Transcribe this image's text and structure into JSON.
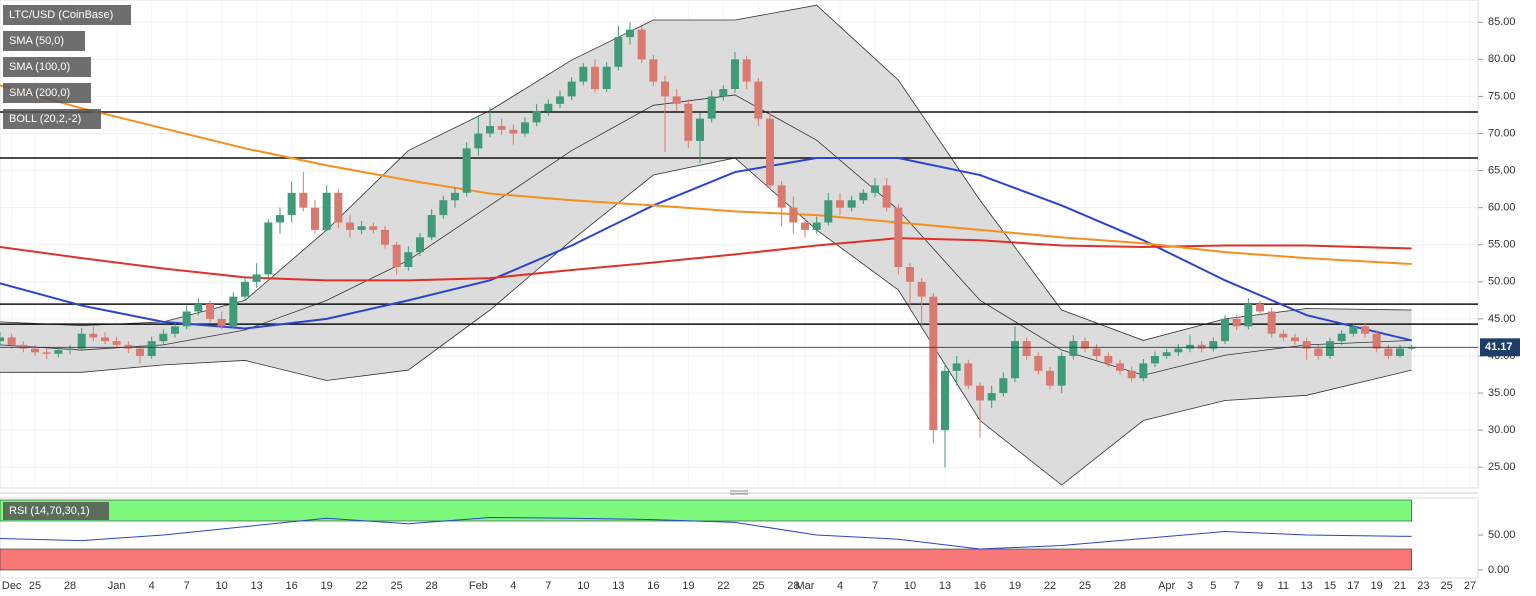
{
  "chart_data": {
    "type": "candlestick",
    "title": "LTC/USD (CoinBase)",
    "up_color": "#3f9a78",
    "down_color": "#d97a70",
    "start_date": "Dec 22",
    "candles": [
      [
        42,
        43.2,
        41.5,
        42.5
      ],
      [
        42.5,
        43,
        41,
        41.5
      ],
      [
        41.5,
        42,
        40.5,
        41
      ],
      [
        41,
        41.5,
        40,
        40.5
      ],
      [
        40.5,
        41,
        39.6,
        40.3
      ],
      [
        40.3,
        41.2,
        39.8,
        40.8
      ],
      [
        40.8,
        41.5,
        40.2,
        41
      ],
      [
        41,
        43.8,
        40.8,
        43
      ],
      [
        43,
        44,
        42,
        42.5
      ],
      [
        42.5,
        43.2,
        41.6,
        42
      ],
      [
        42,
        42.6,
        41,
        41.5
      ],
      [
        41.5,
        42,
        40.4,
        41
      ],
      [
        41,
        41.5,
        39,
        40
      ],
      [
        40,
        42.6,
        39.6,
        42
      ],
      [
        42,
        43.6,
        41.5,
        43
      ],
      [
        43,
        44.5,
        42.5,
        44
      ],
      [
        44,
        46.8,
        43.6,
        46
      ],
      [
        46,
        47.8,
        45.5,
        47
      ],
      [
        47,
        47.5,
        44.5,
        45
      ],
      [
        45,
        46,
        43.6,
        44
      ],
      [
        44,
        48.6,
        43.8,
        48
      ],
      [
        48,
        50.8,
        47.5,
        50
      ],
      [
        50,
        52.5,
        49.2,
        51
      ],
      [
        51,
        58.5,
        50.5,
        58
      ],
      [
        58,
        60,
        56.5,
        59
      ],
      [
        59,
        63.5,
        58,
        62
      ],
      [
        62,
        64.8,
        59.5,
        60
      ],
      [
        60,
        61,
        56.5,
        57
      ],
      [
        57,
        63,
        56.8,
        62
      ],
      [
        62,
        62.5,
        57.2,
        58
      ],
      [
        58,
        59,
        56,
        57
      ],
      [
        57,
        58.2,
        56.4,
        57.5
      ],
      [
        57.5,
        58,
        56.5,
        57
      ],
      [
        57,
        57.5,
        54.5,
        55
      ],
      [
        55,
        55.4,
        51,
        52
      ],
      [
        52,
        54.8,
        51.5,
        54
      ],
      [
        54,
        56.6,
        53.5,
        56
      ],
      [
        56,
        59.8,
        55.6,
        59
      ],
      [
        59,
        61.6,
        58.5,
        61
      ],
      [
        61,
        62.8,
        60,
        62
      ],
      [
        62,
        68.8,
        61.5,
        68
      ],
      [
        68,
        72.5,
        67,
        70
      ],
      [
        70,
        73.5,
        69.5,
        71
      ],
      [
        71,
        72,
        69.8,
        70.5
      ],
      [
        70.5,
        71.2,
        68.5,
        70
      ],
      [
        70,
        72.2,
        69.6,
        71.5
      ],
      [
        71.5,
        74,
        71,
        73
      ],
      [
        73,
        74.6,
        72.4,
        74
      ],
      [
        74,
        75.8,
        73.4,
        75
      ],
      [
        75,
        77.6,
        74.5,
        77
      ],
      [
        77,
        79.5,
        76.5,
        79
      ],
      [
        79,
        80,
        75.5,
        76
      ],
      [
        76,
        79.6,
        75.6,
        79
      ],
      [
        79,
        84.5,
        78.5,
        83
      ],
      [
        83,
        85,
        82,
        84
      ],
      [
        84,
        84.5,
        79.5,
        80
      ],
      [
        80,
        80.6,
        76.4,
        77
      ],
      [
        77,
        77.8,
        67.5,
        75
      ],
      [
        75,
        76,
        73,
        74
      ],
      [
        74,
        74.6,
        68,
        69
      ],
      [
        69,
        72.8,
        66,
        72
      ],
      [
        72,
        75.8,
        71.5,
        75
      ],
      [
        75,
        76.5,
        74.4,
        76
      ],
      [
        76,
        81,
        75.5,
        80
      ],
      [
        80,
        80.5,
        76,
        77
      ],
      [
        77,
        77.5,
        71,
        72
      ],
      [
        72,
        73,
        62.5,
        63
      ],
      [
        63,
        63.6,
        57.5,
        60
      ],
      [
        60,
        61.5,
        56.5,
        58
      ],
      [
        58,
        58.6,
        56,
        57
      ],
      [
        57,
        58.8,
        56.5,
        58
      ],
      [
        58,
        62,
        57.6,
        61
      ],
      [
        61,
        62,
        59,
        60
      ],
      [
        60,
        61.6,
        59.5,
        61
      ],
      [
        61,
        62.5,
        60.5,
        62
      ],
      [
        62,
        64,
        61.4,
        63
      ],
      [
        63,
        64,
        59.5,
        60
      ],
      [
        60,
        60.5,
        51,
        52
      ],
      [
        52,
        52.5,
        46.6,
        50
      ],
      [
        50,
        50.5,
        44,
        48
      ],
      [
        48,
        48.5,
        28.2,
        30
      ],
      [
        30,
        39,
        25,
        38
      ],
      [
        38,
        40,
        36,
        39
      ],
      [
        39,
        39.5,
        35.5,
        36
      ],
      [
        36,
        36.5,
        29,
        34
      ],
      [
        34,
        36,
        33,
        35
      ],
      [
        35,
        37.8,
        34.5,
        37
      ],
      [
        37,
        44,
        36.5,
        42
      ],
      [
        42,
        42.5,
        39.5,
        40
      ],
      [
        40,
        40.5,
        37.5,
        38
      ],
      [
        38,
        38.5,
        35.5,
        36
      ],
      [
        36,
        40.5,
        35,
        40
      ],
      [
        40,
        42.8,
        39.5,
        42
      ],
      [
        42,
        42.5,
        40.5,
        41
      ],
      [
        41,
        41.6,
        39.5,
        40
      ],
      [
        40,
        40.5,
        38.5,
        39
      ],
      [
        39,
        39.5,
        37.5,
        38
      ],
      [
        38,
        38.6,
        36.5,
        37
      ],
      [
        37,
        39.6,
        36.6,
        39
      ],
      [
        39,
        40.6,
        38.5,
        40
      ],
      [
        40,
        41,
        39.6,
        40.5
      ],
      [
        40.5,
        41.6,
        40,
        41
      ],
      [
        41,
        42.8,
        40.5,
        41.5
      ],
      [
        41.5,
        42,
        40.5,
        41
      ],
      [
        41,
        42.5,
        40.6,
        42
      ],
      [
        42,
        45.5,
        41.6,
        45
      ],
      [
        45,
        45.5,
        43.5,
        44
      ],
      [
        44,
        47.8,
        43.6,
        47
      ],
      [
        47,
        47.5,
        45.5,
        46
      ],
      [
        46,
        46.5,
        42.5,
        43
      ],
      [
        43,
        43.5,
        42,
        42.5
      ],
      [
        42.5,
        43,
        41.5,
        42
      ],
      [
        42,
        42.5,
        39.5,
        41
      ],
      [
        41,
        41.5,
        39.5,
        40
      ],
      [
        40,
        42.5,
        39.6,
        42
      ],
      [
        42,
        43.5,
        41.5,
        43
      ],
      [
        43,
        44.5,
        42.6,
        44
      ],
      [
        44,
        44.5,
        42.5,
        43
      ],
      [
        43,
        43.5,
        40.5,
        41
      ],
      [
        41,
        41.5,
        39.6,
        40
      ],
      [
        40,
        41.5,
        39.8,
        41
      ],
      [
        41,
        41.5,
        40.8,
        41.17
      ]
    ],
    "xlim": [
      "Dec 22",
      "Apr 27"
    ],
    "xticks": [
      {
        "value": "Dec 23",
        "label": "Dec"
      },
      {
        "value": "Dec 25",
        "label": "25"
      },
      {
        "value": "Dec 28",
        "label": "28"
      },
      {
        "value": "Jan 1",
        "label": "Jan"
      },
      {
        "value": "Jan 4",
        "label": "4"
      },
      {
        "value": "Jan 7",
        "label": "7"
      },
      {
        "value": "Jan 10",
        "label": "10"
      },
      {
        "value": "Jan 13",
        "label": "13"
      },
      {
        "value": "Jan 16",
        "label": "16"
      },
      {
        "value": "Jan 19",
        "label": "19"
      },
      {
        "value": "Jan 22",
        "label": "22"
      },
      {
        "value": "Jan 25",
        "label": "25"
      },
      {
        "value": "Jan 28",
        "label": "28"
      },
      {
        "value": "Feb 1",
        "label": "Feb"
      },
      {
        "value": "Feb 4",
        "label": "4"
      },
      {
        "value": "Feb 7",
        "label": "7"
      },
      {
        "value": "Feb 10",
        "label": "10"
      },
      {
        "value": "Feb 13",
        "label": "13"
      },
      {
        "value": "Feb 16",
        "label": "16"
      },
      {
        "value": "Feb 19",
        "label": "19"
      },
      {
        "value": "Feb 22",
        "label": "22"
      },
      {
        "value": "Feb 25",
        "label": "25"
      },
      {
        "value": "Feb 28",
        "label": "28"
      },
      {
        "value": "Mar 1",
        "label": "Mar"
      },
      {
        "value": "Mar 4",
        "label": "4"
      },
      {
        "value": "Mar 7",
        "label": "7"
      },
      {
        "value": "Mar 10",
        "label": "10"
      },
      {
        "value": "Mar 13",
        "label": "13"
      },
      {
        "value": "Mar 16",
        "label": "16"
      },
      {
        "value": "Mar 19",
        "label": "19"
      },
      {
        "value": "Mar 22",
        "label": "22"
      },
      {
        "value": "Mar 25",
        "label": "25"
      },
      {
        "value": "Mar 28",
        "label": "28"
      },
      {
        "value": "Apr 1",
        "label": "Apr"
      },
      {
        "value": "Apr 3",
        "label": "3"
      },
      {
        "value": "Apr 5",
        "label": "5"
      },
      {
        "value": "Apr 7",
        "label": "7"
      },
      {
        "value": "Apr 9",
        "label": "9"
      },
      {
        "value": "Apr 11",
        "label": "11"
      },
      {
        "value": "Apr 13",
        "label": "13"
      },
      {
        "value": "Apr 15",
        "label": "15"
      },
      {
        "value": "Apr 17",
        "label": "17"
      },
      {
        "value": "Apr 19",
        "label": "19"
      },
      {
        "value": "Apr 21",
        "label": "21"
      },
      {
        "value": "Apr 23",
        "label": "23"
      },
      {
        "value": "Apr 25",
        "label": "25"
      },
      {
        "value": "Apr 27",
        "label": "27"
      }
    ],
    "ylim": [
      22.2,
      88
    ],
    "yticks": [
      {
        "value": 25,
        "label": "25.00"
      },
      {
        "value": 30,
        "label": "30.00"
      },
      {
        "value": 35,
        "label": "35.00"
      },
      {
        "value": 40,
        "label": "40.00"
      },
      {
        "value": 45,
        "label": "45.00"
      },
      {
        "value": 50,
        "label": "50.00"
      },
      {
        "value": 55,
        "label": "55.00"
      },
      {
        "value": 60,
        "label": "60.00"
      },
      {
        "value": 65,
        "label": "65.00"
      },
      {
        "value": 70,
        "label": "70.00"
      },
      {
        "value": 75,
        "label": "75.00"
      },
      {
        "value": 80,
        "label": "80.00"
      },
      {
        "value": 85,
        "label": "85.00"
      }
    ],
    "grid": true,
    "levels": [
      72.9,
      66.7,
      47,
      44.3
    ],
    "indicator_dates": [
      "Dec 22",
      "Dec 29",
      "Jan 5",
      "Jan 12",
      "Jan 19",
      "Jan 26",
      "Feb 2",
      "Feb 9",
      "Feb 16",
      "Feb 23",
      "Mar 2",
      "Mar 9",
      "Mar 16",
      "Mar 23",
      "Mar 30",
      "Apr 6",
      "Apr 13",
      "Apr 22"
    ],
    "series": [
      {
        "name": "SMA (50,0)",
        "color": "#2a44d0",
        "values": [
          49.8,
          46.8,
          44.6,
          43.7,
          45,
          47.5,
          50.2,
          54.9,
          60.3,
          64.8,
          66.7,
          66.7,
          64.4,
          60.3,
          55.6,
          50.2,
          45.5,
          42.1
        ]
      },
      {
        "name": "SMA (100,0)",
        "color": "#e0302a",
        "values": [
          54.7,
          53.2,
          51.8,
          50.6,
          50.2,
          50.2,
          50.5,
          51.6,
          52.6,
          53.7,
          54.9,
          55.9,
          55.6,
          54.9,
          54.7,
          54.9,
          54.9,
          54.5
        ]
      },
      {
        "name": "SMA (200,0)",
        "color": "#f5901e",
        "values": [
          76.5,
          73.4,
          70.7,
          68,
          65.7,
          63.7,
          61.9,
          61,
          60.3,
          59.5,
          59,
          58,
          57,
          56,
          55.2,
          54,
          53.2,
          52.4
        ]
      }
    ],
    "bollinger": {
      "name": "BOLL (20,2,-2)",
      "color": "#333333",
      "upper": [
        44.6,
        44.1,
        44.6,
        47.5,
        57,
        67.7,
        73.1,
        79.9,
        85.3,
        85.3,
        87.3,
        77.2,
        61,
        46.2,
        42.1,
        45,
        46.4,
        46.2
      ],
      "middle": [
        41.5,
        40.8,
        41.5,
        43.5,
        47.5,
        52.9,
        60.3,
        67.7,
        73.8,
        75.2,
        69.1,
        59.7,
        47.5,
        40.8,
        37.4,
        40.1,
        41.5,
        42.1
      ],
      "lower": [
        37.8,
        37.8,
        38.8,
        39.4,
        36.7,
        38.1,
        46.2,
        55.6,
        64.4,
        66.7,
        57,
        48.9,
        31.3,
        22.6,
        31.3,
        34,
        34.7,
        38.1
      ]
    },
    "rsi": {
      "name": "RSI (14,70,30,1)",
      "color": "#2a44d0",
      "values": [
        45,
        42,
        50,
        62,
        74,
        66,
        75,
        74,
        72,
        68,
        50,
        44,
        30,
        35,
        45,
        55,
        50,
        48
      ],
      "ylim": [
        0,
        100
      ],
      "yticks": [
        {
          "value": 50,
          "label": "50.00"
        },
        {
          "value": 0,
          "label": "0.00"
        }
      ],
      "overbought": 70,
      "oversold": 30
    }
  }
}
